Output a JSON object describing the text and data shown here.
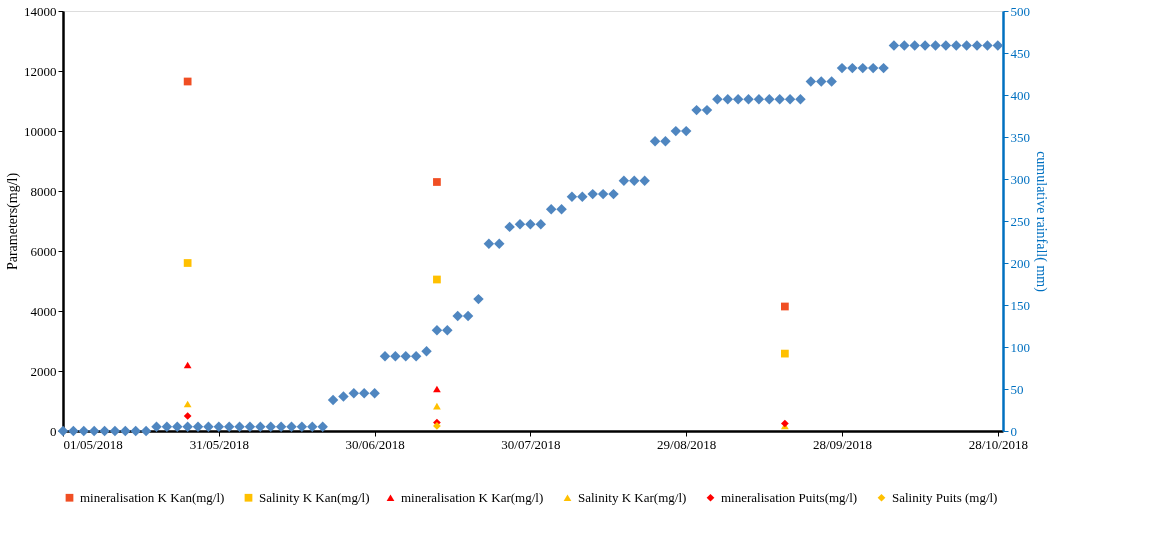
{
  "chart_data": {
    "type": "scatter",
    "ylabel": "Parameters(mg/l)",
    "y2label": "cumulative rainfall( mm)",
    "xlim": [
      "2018-05-01",
      "2018-10-29"
    ],
    "xticks": [
      {
        "value": "2018-05-01",
        "label": "01/05/2018"
      },
      {
        "value": "2018-05-31",
        "label": "31/05/2018"
      },
      {
        "value": "2018-06-30",
        "label": "30/06/2018"
      },
      {
        "value": "2018-07-30",
        "label": "30/07/2018"
      },
      {
        "value": "2018-08-29",
        "label": "29/08/2018"
      },
      {
        "value": "2018-09-28",
        "label": "28/09/2018"
      },
      {
        "value": "2018-10-28",
        "label": "28/10/2018"
      }
    ],
    "ylim": [
      0,
      14000
    ],
    "yticks": [
      0,
      2000,
      4000,
      6000,
      8000,
      10000,
      12000,
      14000
    ],
    "y2lim": [
      0,
      500
    ],
    "y2ticks": [
      0,
      50,
      100,
      150,
      200,
      250,
      300,
      350,
      400,
      450,
      500
    ],
    "grid": false,
    "legend": "bottom",
    "series": [
      {
        "name": "mineralisation  K Kan(mg/l)",
        "color": "#f04e23",
        "marker": "square",
        "x": [
          "2018-05-25",
          "2018-07-12",
          "2018-09-17"
        ],
        "values": [
          11650,
          8300,
          4150
        ]
      },
      {
        "name": "Salinity K Kan(mg/l)",
        "color": "#ffc000",
        "marker": "square",
        "x": [
          "2018-05-25",
          "2018-07-12",
          "2018-09-17"
        ],
        "values": [
          5600,
          5050,
          2580
        ]
      },
      {
        "name": "mineralisation  K Kar(mg/l)",
        "color": "#ff0000",
        "marker": "triangle",
        "x": [
          "2018-05-25",
          "2018-07-12"
        ],
        "values": [
          2200,
          1400
        ]
      },
      {
        "name": "Salinity  K Kar(mg/l)",
        "color": "#ffc000",
        "marker": "triangle",
        "x": [
          "2018-05-25",
          "2018-07-12",
          "2018-09-17"
        ],
        "values": [
          900,
          830,
          170
        ]
      },
      {
        "name": "mineralisation  Puits(mg/l)",
        "color": "#ff0000",
        "marker": "diamond",
        "x": [
          "2018-05-25",
          "2018-07-12",
          "2018-09-17"
        ],
        "values": [
          500,
          280,
          250
        ]
      },
      {
        "name": "Salinity Puits (mg/l)",
        "color": "#ffc000",
        "marker": "diamond",
        "x": [
          "2018-07-12"
        ],
        "values": [
          170
        ]
      },
      {
        "color": "#4f86c0",
        "marker": "diamond",
        "axis": "y2",
        "x": [
          "2018-05-01",
          "2018-05-03",
          "2018-05-05",
          "2018-05-07",
          "2018-05-09",
          "2018-05-11",
          "2018-05-13",
          "2018-05-15",
          "2018-05-17",
          "2018-05-19",
          "2018-05-21",
          "2018-05-23",
          "2018-05-25",
          "2018-05-27",
          "2018-05-29",
          "2018-05-31",
          "2018-06-02",
          "2018-06-04",
          "2018-06-06",
          "2018-06-08",
          "2018-06-10",
          "2018-06-12",
          "2018-06-14",
          "2018-06-16",
          "2018-06-18",
          "2018-06-20",
          "2018-06-22",
          "2018-06-24",
          "2018-06-26",
          "2018-06-28",
          "2018-06-30",
          "2018-07-02",
          "2018-07-04",
          "2018-07-06",
          "2018-07-08",
          "2018-07-10",
          "2018-07-12",
          "2018-07-14",
          "2018-07-16",
          "2018-07-18",
          "2018-07-20",
          "2018-07-22",
          "2018-07-24",
          "2018-07-26",
          "2018-07-28",
          "2018-07-30",
          "2018-08-01",
          "2018-08-03",
          "2018-08-05",
          "2018-08-07",
          "2018-08-09",
          "2018-08-11",
          "2018-08-13",
          "2018-08-15",
          "2018-08-17",
          "2018-08-19",
          "2018-08-21",
          "2018-08-23",
          "2018-08-25",
          "2018-08-27",
          "2018-08-29",
          "2018-08-31",
          "2018-09-02",
          "2018-09-04",
          "2018-09-06",
          "2018-09-08",
          "2018-09-10",
          "2018-09-12",
          "2018-09-14",
          "2018-09-16",
          "2018-09-18",
          "2018-09-20",
          "2018-09-22",
          "2018-09-24",
          "2018-09-26",
          "2018-09-28",
          "2018-09-30",
          "2018-10-02",
          "2018-10-04",
          "2018-10-06",
          "2018-10-08",
          "2018-10-10",
          "2018-10-12",
          "2018-10-14",
          "2018-10-16",
          "2018-10-18",
          "2018-10-20",
          "2018-10-22",
          "2018-10-24",
          "2018-10-26",
          "2018-10-28"
        ],
        "values": [
          0,
          0,
          0,
          0,
          0,
          0,
          0,
          0,
          0,
          5,
          5,
          5,
          5,
          5,
          5,
          5,
          5,
          5,
          5,
          5,
          5,
          5,
          5,
          5,
          5,
          5,
          37,
          41,
          45,
          45,
          45,
          89,
          89,
          89,
          89,
          95,
          120,
          120,
          137,
          137,
          157,
          223,
          223,
          243,
          246,
          246,
          246,
          264,
          264,
          279,
          279,
          282,
          282,
          282,
          298,
          298,
          298,
          345,
          345,
          357,
          357,
          382,
          382,
          395,
          395,
          395,
          395,
          395,
          395,
          395,
          395,
          395,
          416,
          416,
          416,
          432,
          432,
          432,
          432,
          432,
          459,
          459,
          459,
          459,
          459,
          459,
          459,
          459,
          459,
          459,
          459
        ]
      }
    ]
  }
}
